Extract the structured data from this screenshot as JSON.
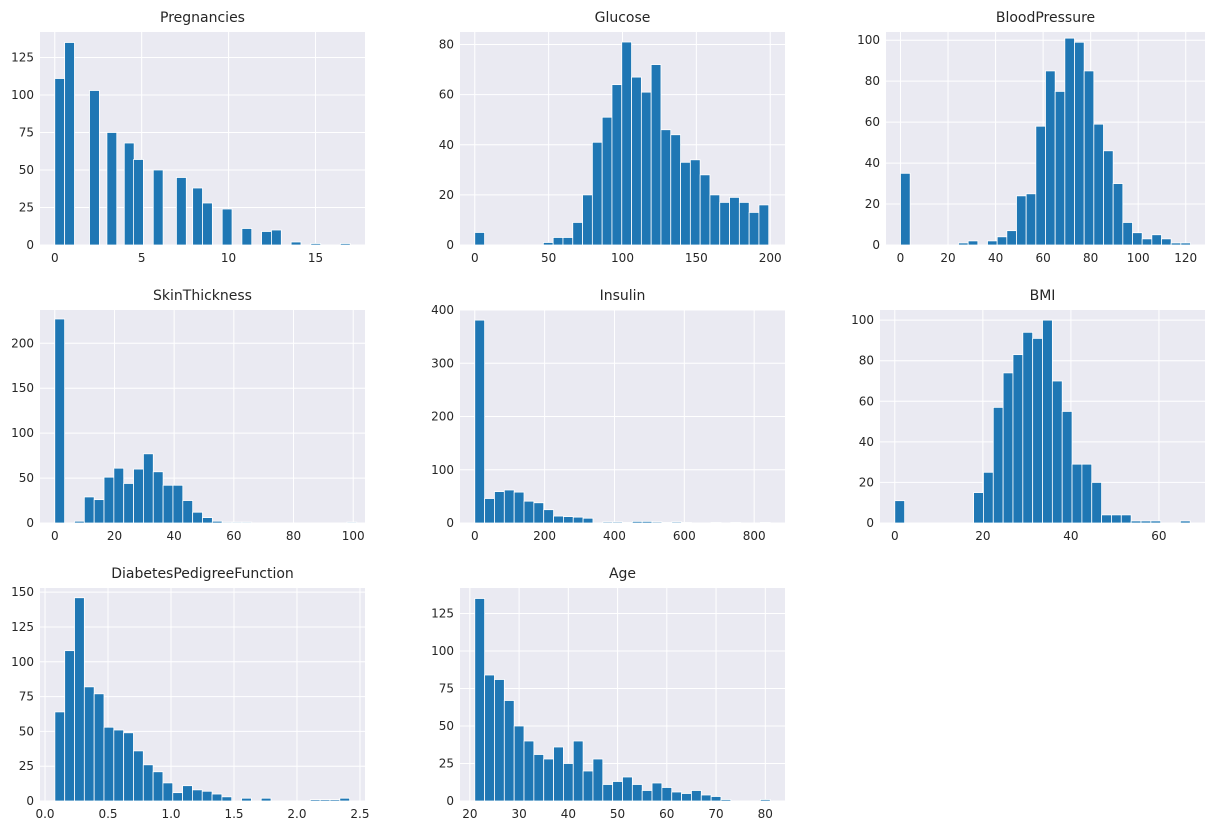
{
  "chart_data": [
    {
      "type": "bar",
      "title": "Pregnancies",
      "xlim": [
        -0.85,
        17.85
      ],
      "ylim": [
        0,
        142
      ],
      "xticks": [
        0,
        5,
        10,
        15
      ],
      "yticks": [
        0,
        25,
        50,
        75,
        100,
        125
      ],
      "bin_width": 0.567,
      "bins": [
        [
          0,
          111
        ],
        [
          0.567,
          135
        ],
        [
          2.0,
          103
        ],
        [
          3.0,
          75
        ],
        [
          4.0,
          68
        ],
        [
          4.533,
          57
        ],
        [
          5.667,
          50
        ],
        [
          7.0,
          45
        ],
        [
          7.933,
          38
        ],
        [
          8.5,
          28
        ],
        [
          9.633,
          24
        ],
        [
          10.767,
          11
        ],
        [
          11.9,
          9
        ],
        [
          12.467,
          10
        ],
        [
          13.6,
          2
        ],
        [
          14.733,
          1
        ],
        [
          16.433,
          1
        ]
      ],
      "grid": true
    },
    {
      "type": "bar",
      "title": "Glucose",
      "xlim": [
        -10,
        210
      ],
      "ylim": [
        0,
        85
      ],
      "xticks": [
        0,
        50,
        100,
        150,
        200
      ],
      "yticks": [
        0,
        20,
        40,
        60,
        80
      ],
      "bin_width": 6.633,
      "bins": [
        [
          0,
          5
        ],
        [
          46.433,
          1
        ],
        [
          53.067,
          3
        ],
        [
          59.7,
          3
        ],
        [
          66.333,
          9
        ],
        [
          72.967,
          20
        ],
        [
          79.6,
          41
        ],
        [
          86.233,
          51
        ],
        [
          92.867,
          64
        ],
        [
          99.5,
          81
        ],
        [
          106.133,
          67
        ],
        [
          112.767,
          61
        ],
        [
          119.4,
          72
        ],
        [
          126.033,
          46
        ],
        [
          132.667,
          44
        ],
        [
          139.3,
          33
        ],
        [
          145.933,
          34
        ],
        [
          152.567,
          28
        ],
        [
          159.2,
          20
        ],
        [
          165.833,
          17
        ],
        [
          172.467,
          19
        ],
        [
          179.1,
          17
        ],
        [
          185.733,
          13
        ],
        [
          192.367,
          16
        ]
      ],
      "grid": true
    },
    {
      "type": "bar",
      "title": "BloodPressure",
      "xlim": [
        -6.1,
        128.1
      ],
      "ylim": [
        0,
        104
      ],
      "xticks": [
        0,
        20,
        40,
        60,
        80,
        100,
        120
      ],
      "yticks": [
        0,
        20,
        40,
        60,
        80,
        100
      ],
      "bin_width": 4.067,
      "bins": [
        [
          0,
          35
        ],
        [
          24.4,
          1
        ],
        [
          28.467,
          2
        ],
        [
          36.6,
          2
        ],
        [
          40.667,
          4
        ],
        [
          44.733,
          7
        ],
        [
          48.8,
          24
        ],
        [
          52.867,
          25
        ],
        [
          56.933,
          58
        ],
        [
          61.0,
          85
        ],
        [
          65.067,
          75
        ],
        [
          69.133,
          101
        ],
        [
          73.2,
          99
        ],
        [
          77.267,
          85
        ],
        [
          81.333,
          59
        ],
        [
          85.4,
          46
        ],
        [
          89.467,
          30
        ],
        [
          93.533,
          11
        ],
        [
          97.6,
          6
        ],
        [
          101.667,
          3
        ],
        [
          105.733,
          5
        ],
        [
          109.8,
          3
        ],
        [
          113.867,
          1
        ],
        [
          117.933,
          1
        ]
      ],
      "grid": true
    },
    {
      "type": "bar",
      "title": "SkinThickness",
      "xlim": [
        -4.95,
        103.95
      ],
      "ylim": [
        0,
        237
      ],
      "xticks": [
        0,
        20,
        40,
        60,
        80,
        100
      ],
      "yticks": [
        0,
        50,
        100,
        150,
        200
      ],
      "bin_width": 3.3,
      "bins": [
        [
          0,
          227
        ],
        [
          6.6,
          2
        ],
        [
          9.9,
          29
        ],
        [
          13.2,
          26
        ],
        [
          16.5,
          51
        ],
        [
          19.8,
          61
        ],
        [
          23.1,
          44
        ],
        [
          26.4,
          60
        ],
        [
          29.7,
          77
        ],
        [
          33.0,
          57
        ],
        [
          36.3,
          42
        ],
        [
          39.6,
          42
        ],
        [
          42.9,
          25
        ],
        [
          46.2,
          12
        ],
        [
          49.5,
          6
        ],
        [
          52.8,
          2
        ],
        [
          56.1,
          1
        ],
        [
          59.4,
          1
        ],
        [
          62.7,
          1
        ],
        [
          97.9,
          1
        ]
      ],
      "grid": true
    },
    {
      "type": "bar",
      "title": "Insulin",
      "xlim": [
        -42.3,
        888.3
      ],
      "ylim": [
        0,
        400
      ],
      "xticks": [
        0,
        200,
        400,
        600,
        800
      ],
      "yticks": [
        0,
        100,
        200,
        300,
        400
      ],
      "bin_width": 28.2,
      "bins": [
        [
          0,
          381
        ],
        [
          28.2,
          46
        ],
        [
          56.4,
          59
        ],
        [
          84.6,
          62
        ],
        [
          112.8,
          58
        ],
        [
          141.0,
          41
        ],
        [
          169.2,
          38
        ],
        [
          197.4,
          25
        ],
        [
          225.6,
          13
        ],
        [
          253.8,
          12
        ],
        [
          282.0,
          11
        ],
        [
          310.2,
          9
        ],
        [
          366.6,
          2
        ],
        [
          394.8,
          2
        ],
        [
          423.0,
          1
        ],
        [
          451.2,
          3
        ],
        [
          479.4,
          3
        ],
        [
          507.6,
          2
        ],
        [
          535.8,
          1
        ],
        [
          564.0,
          2
        ],
        [
          592.2,
          1
        ],
        [
          676.8,
          1
        ],
        [
          733.2,
          1
        ],
        [
          817.8,
          1
        ]
      ],
      "grid": true
    },
    {
      "type": "bar",
      "title": "BMI",
      "xlim": [
        -3.36,
        70.46
      ],
      "ylim": [
        0,
        105
      ],
      "xticks": [
        0,
        20,
        40,
        60
      ],
      "yticks": [
        0,
        20,
        40,
        60,
        80,
        100
      ],
      "bin_width": 2.237,
      "bins": [
        [
          0,
          11
        ],
        [
          17.9,
          15
        ],
        [
          20.133,
          25
        ],
        [
          22.37,
          57
        ],
        [
          24.607,
          74
        ],
        [
          26.843,
          83
        ],
        [
          29.08,
          94
        ],
        [
          31.317,
          91
        ],
        [
          33.553,
          100
        ],
        [
          35.79,
          70
        ],
        [
          38.027,
          55
        ],
        [
          40.263,
          29
        ],
        [
          42.5,
          29
        ],
        [
          44.737,
          20
        ],
        [
          46.973,
          4
        ],
        [
          49.21,
          4
        ],
        [
          51.447,
          4
        ],
        [
          53.683,
          1
        ],
        [
          55.92,
          1
        ],
        [
          58.157,
          1
        ],
        [
          64.867,
          1
        ]
      ],
      "grid": true
    },
    {
      "type": "bar",
      "title": "DiabetesPedigreeFunction",
      "xlim": [
        -0.04,
        2.54
      ],
      "ylim": [
        0,
        153
      ],
      "xticks": [
        0.0,
        0.5,
        1.0,
        1.5,
        2.0,
        2.5
      ],
      "yticks": [
        0,
        25,
        50,
        75,
        100,
        125,
        150
      ],
      "bin_width": 0.078,
      "bins": [
        [
          0.078,
          64
        ],
        [
          0.156,
          108
        ],
        [
          0.234,
          146
        ],
        [
          0.312,
          82
        ],
        [
          0.39,
          77
        ],
        [
          0.468,
          53
        ],
        [
          0.546,
          51
        ],
        [
          0.624,
          49
        ],
        [
          0.702,
          36
        ],
        [
          0.78,
          26
        ],
        [
          0.858,
          21
        ],
        [
          0.936,
          13
        ],
        [
          1.014,
          6
        ],
        [
          1.092,
          11
        ],
        [
          1.17,
          8
        ],
        [
          1.248,
          7
        ],
        [
          1.326,
          5
        ],
        [
          1.404,
          3
        ],
        [
          1.56,
          2
        ],
        [
          1.716,
          2
        ],
        [
          2.106,
          1
        ],
        [
          2.184,
          1
        ],
        [
          2.262,
          1
        ],
        [
          2.34,
          2
        ]
      ],
      "grid": true
    },
    {
      "type": "bar",
      "title": "Age",
      "xlim": [
        18,
        84
      ],
      "ylim": [
        0,
        142
      ],
      "xticks": [
        20,
        30,
        40,
        50,
        60,
        70,
        80
      ],
      "yticks": [
        0,
        25,
        50,
        75,
        100,
        125
      ],
      "bin_width": 2.0,
      "bins": [
        [
          21,
          135
        ],
        [
          23,
          84
        ],
        [
          25,
          81
        ],
        [
          27,
          67
        ],
        [
          29,
          50
        ],
        [
          31,
          40
        ],
        [
          33,
          31
        ],
        [
          35,
          28
        ],
        [
          37,
          36
        ],
        [
          39,
          25
        ],
        [
          41,
          40
        ],
        [
          43,
          20
        ],
        [
          45,
          28
        ],
        [
          47,
          11
        ],
        [
          49,
          13
        ],
        [
          51,
          16
        ],
        [
          53,
          11
        ],
        [
          55,
          7
        ],
        [
          57,
          12
        ],
        [
          59,
          9
        ],
        [
          61,
          6
        ],
        [
          63,
          5
        ],
        [
          65,
          7
        ],
        [
          67,
          4
        ],
        [
          69,
          3
        ],
        [
          71,
          1
        ],
        [
          79,
          1
        ]
      ],
      "grid": true
    }
  ]
}
